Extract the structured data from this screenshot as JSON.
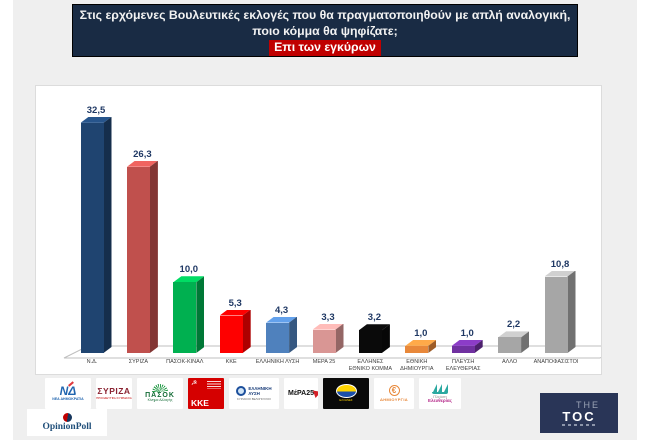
{
  "header": {
    "line1": "Στις ερχόμενες Βουλευτικές εκλογές που θα πραγματοποιηθούν με απλή αναλογική,",
    "line2": "ποιο κόμμα θα ψηφίζατε;",
    "highlight": "Επι των εγκύρων",
    "bg": "#192B44",
    "highlight_bg": "#C00000"
  },
  "chart_data": {
    "type": "bar",
    "title": "Στις ερχόμενες Βουλευτικές εκλογές που θα πραγματοποιηθούν με απλή αναλογική, ποιο κόμμα θα ψηφίζατε;",
    "subtitle": "Επι των εγκύρων",
    "categories": [
      "Ν.Δ.",
      "ΣΥΡΙΖΑ",
      "ΠΑΣΟΚ-ΚΙΝΑΛ",
      "ΚΚΕ",
      "ΕΛΛΗΝΙΚΗ ΛΥΣΗ",
      "ΜΕΡΑ 25",
      "ΕΛΛΗΝΕΣ\nΕΘΝΙΚΟ ΚΟΜΜΑ",
      "ΕΘΝΙΚΗ\nΔΗΜΙΟΥΡΓΙΑ",
      "ΠΛΕΥΣΗ\nΕΛΕΥΘΕΡΙΑΣ",
      "ΑΛΛΟ",
      "ΑΝΑΠΟΦΑΣΙΣΤΟΙ"
    ],
    "values": [
      32.5,
      26.3,
      10.0,
      5.3,
      4.3,
      3.3,
      3.2,
      1.0,
      1.0,
      2.2,
      10.8
    ],
    "value_labels": [
      "32,5",
      "26,3",
      "10,0",
      "5,3",
      "4,3",
      "3,3",
      "3,2",
      "1,0",
      "1,0",
      "2,2",
      "10,8"
    ],
    "colors": [
      "#1F4470",
      "#C0504D",
      "#00B050",
      "#FE0000",
      "#4F81BD",
      "#D99694",
      "#0A0A0A",
      "#E8883A",
      "#7030A0",
      "#A6A6A6",
      "#A6A6A6"
    ],
    "value_label_color": "#1F3864",
    "xlabel": "",
    "ylabel": "",
    "ylim": [
      0,
      35
    ],
    "grid": false,
    "legend": false,
    "style_3d": true,
    "decimal_separator": ","
  },
  "footer": {
    "party_logos": [
      {
        "id": "nd",
        "monogram": "ΝΔ",
        "caption": "ΝΕΑ ΔΗΜΟΚΡΑΤΙΑ"
      },
      {
        "id": "syriza",
        "title": "ΣΥΡΙΖΑ",
        "caption": "ΠΡΟΟΔΕΥΤΙΚΗ ΣΥΜΜΑΧΙΑ"
      },
      {
        "id": "pasok",
        "title": "ΠΑΣΟΚ",
        "caption": "Κίνημα Αλλαγής"
      },
      {
        "id": "kke",
        "title": "ΚΚΕ"
      },
      {
        "id": "elliniki-lysi",
        "title": "ΕΛΛΗΝΙΚΗ\nΛΥΣΗ",
        "caption": "ΚΥΡΙΑΚΟΣ ΒΕΛΟΠΟΥΛΟΣ"
      },
      {
        "id": "mera25",
        "title": "ΜέΡΑ25"
      },
      {
        "id": "ellines",
        "caption": "ΕΛΛΗΝΕΣ"
      },
      {
        "id": "dimiourgia",
        "symbol": "€",
        "caption": "ΔΗΜΙΟΥΡΓΙΑ"
      },
      {
        "id": "plefsi-eleftherias",
        "line1": "Πλεύση",
        "line2": "Ελευθερίας"
      }
    ],
    "opinionpoll_label": "OpinionPoll",
    "thetoc": {
      "the": "THE",
      "toc": "TOC"
    }
  }
}
